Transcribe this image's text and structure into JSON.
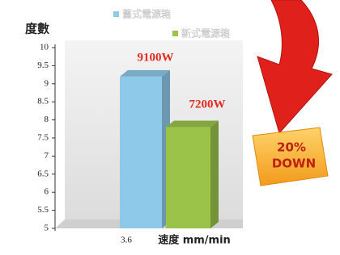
{
  "chart_data": {
    "type": "bar",
    "y_label": "度數",
    "x_label": "速度 mm/min",
    "categories": [
      "3.6"
    ],
    "series": [
      {
        "name": "舊式電源箱",
        "color": "#8ec9ea",
        "values": [
          9.2
        ]
      },
      {
        "name": "新式電源箱",
        "color": "#9bc34a",
        "values": [
          7.8
        ]
      }
    ],
    "ylim": [
      5,
      10
    ],
    "yticks": [
      5,
      5.5,
      6,
      6.5,
      7,
      7.5,
      8,
      8.5,
      9,
      9.5,
      10
    ],
    "annotations": [
      "9100W",
      "7200W",
      "20%",
      "DOWN"
    ]
  }
}
